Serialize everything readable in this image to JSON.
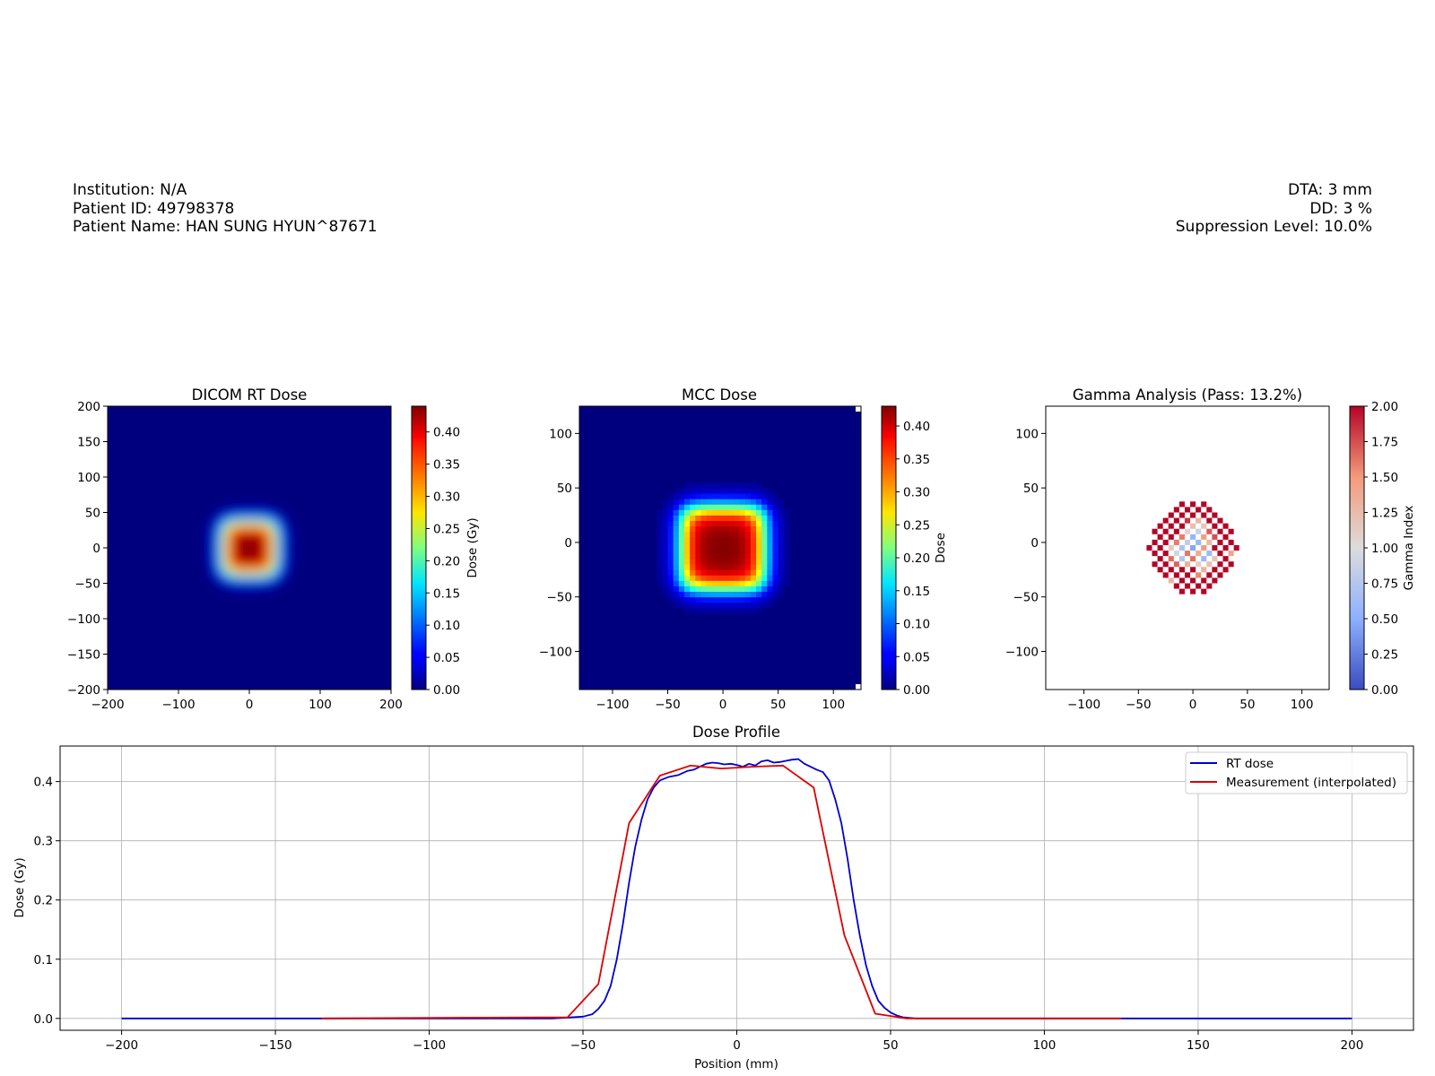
{
  "header": {
    "left": [
      "Institution: N/A",
      "Patient ID: 49798378",
      "Patient Name: HAN SUNG HYUN^87671"
    ],
    "right": [
      "DTA: 3 mm",
      "DD: 3 %",
      "Suppression Level: 10.0%"
    ]
  },
  "chart_data": [
    {
      "type": "heatmap",
      "title": "DICOM RT Dose",
      "xlim": [
        -200,
        200
      ],
      "ylim": [
        -200,
        200
      ],
      "xticks": [
        "−200",
        "−100",
        "0",
        "100",
        "200"
      ],
      "yticks": [
        "200",
        "150",
        "100",
        "50",
        "0",
        "−50",
        "−100",
        "−150",
        "−200"
      ],
      "colormap": "jet",
      "colorbar": {
        "label": "Dose (Gy)",
        "range": [
          0,
          0.44
        ],
        "ticks": [
          "0.00",
          "0.05",
          "0.10",
          "0.15",
          "0.20",
          "0.25",
          "0.30",
          "0.35",
          "0.40"
        ]
      },
      "field": {
        "center": [
          0,
          0
        ],
        "half_width_mm": 37,
        "max_dose": 0.44
      }
    },
    {
      "type": "heatmap",
      "title": "MCC Dose",
      "xlim": [
        -130,
        125
      ],
      "ylim": [
        -135,
        125
      ],
      "xticks": [
        "−100",
        "−50",
        "0",
        "50",
        "100"
      ],
      "yticks": [
        "100",
        "50",
        "0",
        "−50",
        "−100"
      ],
      "colormap": "jet",
      "colorbar": {
        "label": "Dose",
        "range": [
          0,
          0.43
        ],
        "ticks": [
          "0.00",
          "0.05",
          "0.10",
          "0.15",
          "0.20",
          "0.25",
          "0.30",
          "0.35",
          "0.40"
        ]
      },
      "field": {
        "center": [
          0,
          -5
        ],
        "half_width_mm": 37,
        "max_dose": 0.43,
        "pixel_mm": 5
      }
    },
    {
      "type": "heatmap",
      "title": "Gamma Analysis (Pass: 13.2%)",
      "xlim": [
        -135,
        125
      ],
      "ylim": [
        -135,
        125
      ],
      "xticks": [
        "−100",
        "−50",
        "0",
        "50",
        "100"
      ],
      "yticks": [
        "100",
        "50",
        "0",
        "−50",
        "−100"
      ],
      "colormap": "coolwarm",
      "colorbar": {
        "label": "Gamma Index",
        "range": [
          0,
          2
        ],
        "ticks": [
          "0.00",
          "0.25",
          "0.50",
          "0.75",
          "1.00",
          "1.25",
          "1.50",
          "1.75",
          "2.00"
        ]
      },
      "pass_rate_percent": 13.2
    },
    {
      "type": "line",
      "title": "Dose Profile",
      "xlabel": "Position (mm)",
      "ylabel": "Dose (Gy)",
      "xlim": [
        -220,
        220
      ],
      "ylim": [
        -0.02,
        0.46
      ],
      "xticks": [
        -200,
        -150,
        -100,
        -50,
        0,
        50,
        100,
        150,
        200
      ],
      "xtick_labels": [
        "−200",
        "−150",
        "−100",
        "−50",
        "0",
        "50",
        "100",
        "150",
        "200"
      ],
      "yticks": [
        0.0,
        0.1,
        0.2,
        0.3,
        0.4
      ],
      "ytick_labels": [
        "0.0",
        "0.1",
        "0.2",
        "0.3",
        "0.4"
      ],
      "grid": true,
      "legend": "top-right",
      "series": [
        {
          "name": "RT dose",
          "color": "#0000cc",
          "x": [
            -200,
            -60,
            -50,
            -47,
            -45,
            -43,
            -41,
            -39,
            -37,
            -35,
            -33,
            -31,
            -29,
            -27,
            -25,
            -22,
            -19,
            -16,
            -14,
            -12,
            -10,
            -8,
            -6,
            -4,
            -2,
            0,
            2,
            4,
            6,
            8,
            10,
            12,
            14,
            16,
            18,
            20,
            22,
            24,
            26,
            28,
            30,
            32,
            34,
            36,
            38,
            40,
            42,
            44,
            46,
            48,
            50,
            52,
            54,
            56,
            58,
            60,
            200
          ],
          "y": [
            0,
            0,
            0.003,
            0.007,
            0.016,
            0.03,
            0.055,
            0.1,
            0.16,
            0.23,
            0.29,
            0.335,
            0.37,
            0.39,
            0.402,
            0.408,
            0.411,
            0.418,
            0.42,
            0.425,
            0.43,
            0.432,
            0.431,
            0.429,
            0.43,
            0.428,
            0.425,
            0.43,
            0.427,
            0.434,
            0.436,
            0.432,
            0.433,
            0.435,
            0.437,
            0.438,
            0.43,
            0.425,
            0.42,
            0.416,
            0.402,
            0.37,
            0.33,
            0.27,
            0.2,
            0.14,
            0.09,
            0.055,
            0.03,
            0.018,
            0.01,
            0.005,
            0.002,
            0.001,
            0,
            0,
            0
          ]
        },
        {
          "name": "Measurement (interpolated)",
          "color": "#dd0000",
          "x": [
            -135,
            -55,
            -45,
            -35,
            -25,
            -15,
            -5,
            5,
            15,
            25,
            35,
            45,
            55,
            125
          ],
          "y": [
            0,
            0.002,
            0.058,
            0.33,
            0.41,
            0.427,
            0.422,
            0.425,
            0.427,
            0.39,
            0.14,
            0.008,
            0,
            0
          ]
        }
      ]
    }
  ]
}
